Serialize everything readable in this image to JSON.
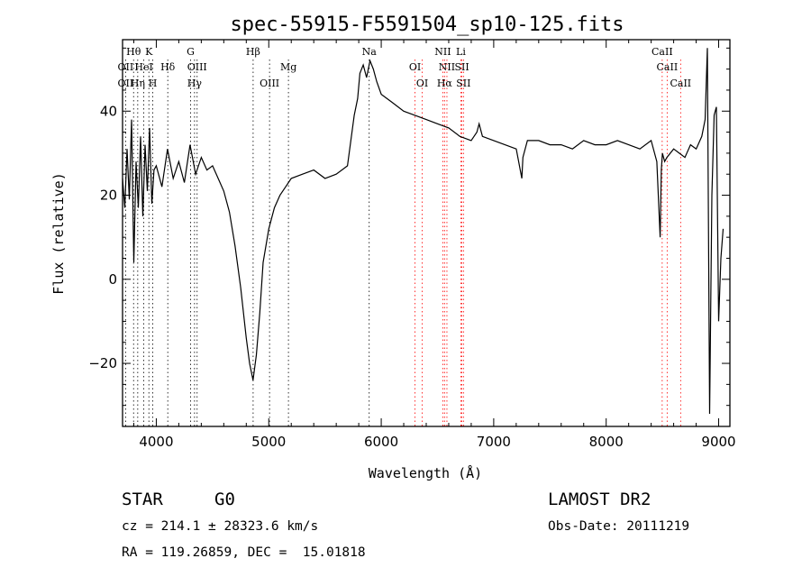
{
  "chart_data": {
    "type": "line",
    "title": "spec-55915-F5591504_sp10-125.fits",
    "xlabel": "Wavelength (Å)",
    "ylabel": "Flux (relative)",
    "xlim": [
      3700,
      9100
    ],
    "ylim": [
      -35,
      57
    ],
    "xticks": [
      4000,
      5000,
      6000,
      7000,
      8000,
      9000
    ],
    "yticks": [
      -20,
      0,
      20,
      40
    ],
    "grid": false,
    "line_color": "#000000",
    "marker_color": "#ff0000",
    "spectral_lines": [
      {
        "name": "Hθ",
        "wavelength": 3798,
        "row": 0,
        "color": "#000000"
      },
      {
        "name": "K",
        "wavelength": 3934,
        "row": 0,
        "color": "#000000"
      },
      {
        "name": "G",
        "wavelength": 4305,
        "row": 0,
        "color": "#000000"
      },
      {
        "name": "Hβ",
        "wavelength": 4861,
        "row": 0,
        "color": "#000000"
      },
      {
        "name": "Na",
        "wavelength": 5893,
        "row": 0,
        "color": "#000000"
      },
      {
        "name": "NII",
        "wavelength": 6548,
        "row": 0,
        "color": "#ff0000"
      },
      {
        "name": "Li",
        "wavelength": 6708,
        "row": 0,
        "color": "#ff0000"
      },
      {
        "name": "CaII",
        "wavelength": 8498,
        "row": 0,
        "color": "#ff0000"
      },
      {
        "name": "OII",
        "wavelength": 3727,
        "row": 1,
        "color": "#000000"
      },
      {
        "name": "HeI",
        "wavelength": 3889,
        "row": 1,
        "color": "#000000"
      },
      {
        "name": "Hδ",
        "wavelength": 4102,
        "row": 1,
        "color": "#000000"
      },
      {
        "name": "OIII",
        "wavelength": 4363,
        "row": 1,
        "color": "#000000"
      },
      {
        "name": "Mg",
        "wavelength": 5175,
        "row": 1,
        "color": "#000000"
      },
      {
        "name": "OI",
        "wavelength": 6300,
        "row": 1,
        "color": "#ff0000"
      },
      {
        "name": "NII",
        "wavelength": 6584,
        "row": 1,
        "color": "#ff0000"
      },
      {
        "name": "SII",
        "wavelength": 6717,
        "row": 1,
        "color": "#ff0000"
      },
      {
        "name": "CaII",
        "wavelength": 8542,
        "row": 1,
        "color": "#ff0000"
      },
      {
        "name": "OII",
        "wavelength": 3727,
        "row": 2,
        "color": "#000000"
      },
      {
        "name": "Hη",
        "wavelength": 3835,
        "row": 2,
        "color": "#000000"
      },
      {
        "name": "H",
        "wavelength": 3969,
        "row": 2,
        "color": "#000000"
      },
      {
        "name": "Hγ",
        "wavelength": 4340,
        "row": 2,
        "color": "#000000"
      },
      {
        "name": "OIII",
        "wavelength": 5007,
        "row": 2,
        "color": "#000000"
      },
      {
        "name": "OI",
        "wavelength": 6364,
        "row": 2,
        "color": "#ff0000"
      },
      {
        "name": "Hα",
        "wavelength": 6563,
        "row": 2,
        "color": "#ff0000"
      },
      {
        "name": "SII",
        "wavelength": 6731,
        "row": 2,
        "color": "#ff0000"
      },
      {
        "name": "CaII",
        "wavelength": 8662,
        "row": 2,
        "color": "#ff0000"
      }
    ],
    "series": [
      {
        "x": [
          3700,
          3720,
          3740,
          3760,
          3780,
          3800,
          3820,
          3840,
          3860,
          3880,
          3900,
          3920,
          3940,
          3960,
          3980,
          4000,
          4050,
          4100,
          4150,
          4200,
          4250,
          4300,
          4350,
          4400,
          4450,
          4500,
          4550,
          4600,
          4650,
          4700,
          4750,
          4800,
          4830,
          4860,
          4890,
          4920,
          4950,
          5000,
          5050,
          5100,
          5150,
          5200,
          5300,
          5400,
          5500,
          5600,
          5700,
          5760,
          5790,
          5810,
          5840,
          5870,
          5900,
          5930,
          5960,
          6000,
          6100,
          6200,
          6300,
          6400,
          6500,
          6600,
          6700,
          6800,
          6850,
          6870,
          6900,
          7000,
          7100,
          7200,
          7250,
          7260,
          7300,
          7400,
          7500,
          7600,
          7700,
          7800,
          7900,
          8000,
          8100,
          8200,
          8300,
          8400,
          8450,
          8480,
          8490,
          8500,
          8520,
          8540,
          8600,
          8650,
          8700,
          8750,
          8800,
          8850,
          8880,
          8900,
          8920,
          8940,
          8960,
          8980,
          9000,
          9020,
          9040
        ],
        "y": [
          24,
          17,
          31,
          19,
          38,
          4,
          28,
          17,
          34,
          15,
          32,
          21,
          36,
          18,
          26,
          27,
          22,
          31,
          24,
          28,
          23,
          32,
          25,
          29,
          26,
          27,
          24,
          21,
          16,
          8,
          -2,
          -14,
          -20,
          -24,
          -18,
          -8,
          4,
          12,
          17,
          20,
          22,
          24,
          25,
          26,
          24,
          25,
          27,
          39,
          43,
          49,
          51,
          48,
          52,
          50,
          47,
          44,
          42,
          40,
          39,
          38,
          37,
          36,
          34,
          33,
          35,
          37,
          34,
          33,
          32,
          31,
          24,
          29,
          33,
          33,
          32,
          32,
          31,
          33,
          32,
          32,
          33,
          32,
          31,
          33,
          28,
          10,
          26,
          30,
          28,
          29,
          31,
          30,
          29,
          32,
          31,
          34,
          38,
          55,
          -32,
          20,
          39,
          41,
          -10,
          5,
          12
        ]
      }
    ]
  },
  "info": {
    "object_class": "STAR",
    "subclass": "G0",
    "survey": "LAMOST DR2",
    "cz_line": "cz = 214.1 ± 28323.6 km/s",
    "obs_date_line": "Obs-Date: 20111219",
    "coords_line": "RA = 119.26859, DEC =  15.01818"
  }
}
